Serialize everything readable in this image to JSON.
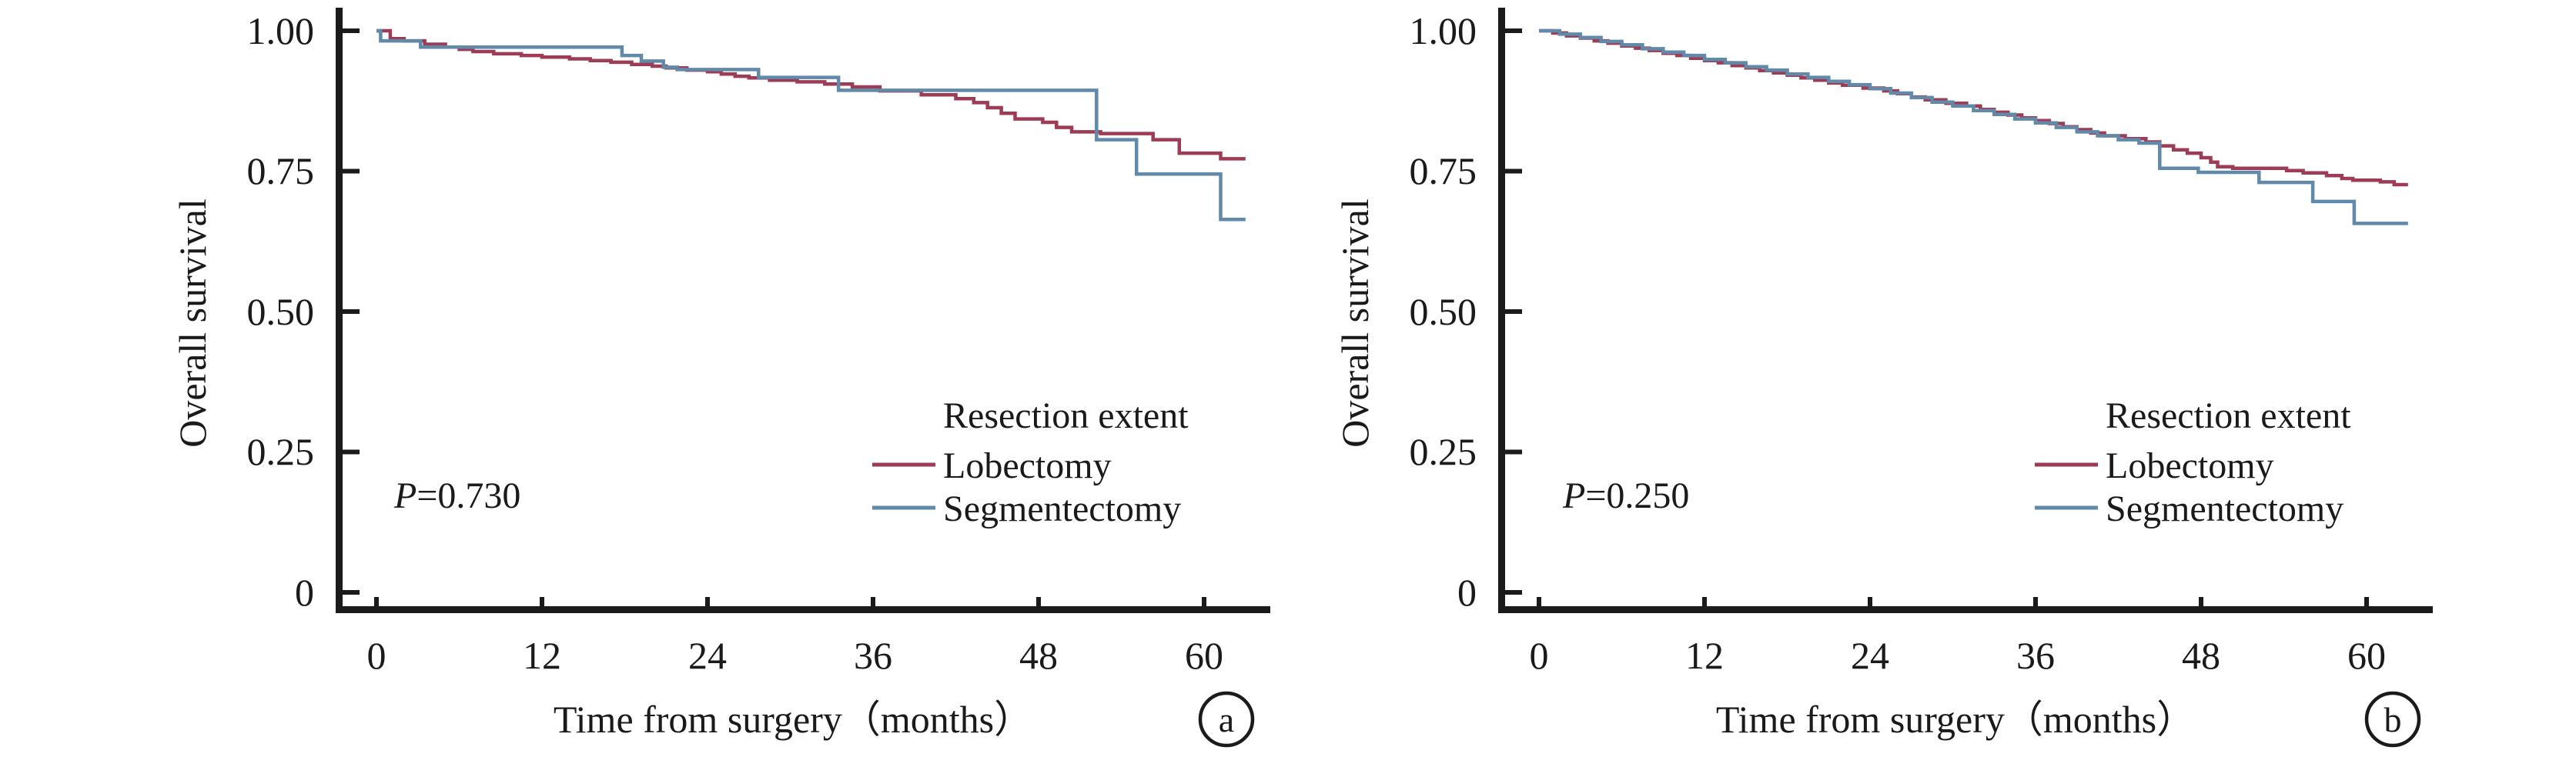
{
  "figure": {
    "background": "#ffffff",
    "axis_color": "#1b1b1b",
    "text_color": "#1a1a1a"
  },
  "chart_data": [
    {
      "type": "line",
      "subtype": "kaplan_meier_step",
      "panel_label": "a",
      "title": "",
      "xlabel": "Time from surgery（months）",
      "ylabel": "Overall survival",
      "xticks": [
        0,
        12,
        24,
        36,
        48,
        60
      ],
      "yticks": [
        "1.00",
        "0.75",
        "0.50",
        "0.25",
        "0"
      ],
      "ytick_values": [
        1.0,
        0.75,
        0.5,
        0.25,
        0
      ],
      "xlim": [
        0,
        64
      ],
      "ylim": [
        0,
        1.0
      ],
      "grid": false,
      "p_label": "P",
      "p_value": "=0.730",
      "legend_title": "Resection extent",
      "legend_position": "inside lower right",
      "series": [
        {
          "name": "Lobectomy",
          "color": "#9e3c55",
          "points": [
            [
              0,
              1.0
            ],
            [
              1,
              0.986
            ],
            [
              2,
              0.982
            ],
            [
              3.5,
              0.976
            ],
            [
              5,
              0.971
            ],
            [
              6,
              0.967
            ],
            [
              7,
              0.963
            ],
            [
              8.5,
              0.959
            ],
            [
              10.5,
              0.956
            ],
            [
              12,
              0.953
            ],
            [
              14,
              0.95
            ],
            [
              15.5,
              0.947
            ],
            [
              17,
              0.944
            ],
            [
              18.5,
              0.94
            ],
            [
              20,
              0.937
            ],
            [
              21,
              0.934
            ],
            [
              22.5,
              0.93
            ],
            [
              24,
              0.927
            ],
            [
              25,
              0.923
            ],
            [
              26,
              0.919
            ],
            [
              27,
              0.916
            ],
            [
              28.5,
              0.912
            ],
            [
              30.5,
              0.909
            ],
            [
              32.5,
              0.905
            ],
            [
              34.5,
              0.9
            ],
            [
              36.5,
              0.893
            ],
            [
              39.5,
              0.886
            ],
            [
              42,
              0.879
            ],
            [
              43.3,
              0.872
            ],
            [
              44.3,
              0.863
            ],
            [
              45.3,
              0.853
            ],
            [
              46.3,
              0.843
            ],
            [
              48.3,
              0.837
            ],
            [
              49.3,
              0.828
            ],
            [
              50.4,
              0.82
            ],
            [
              52.5,
              0.817
            ],
            [
              56.3,
              0.806
            ],
            [
              58.2,
              0.782
            ],
            [
              61.2,
              0.772
            ],
            [
              63,
              0.772
            ]
          ]
        },
        {
          "name": "Segmentectomy",
          "color": "#6189a9",
          "points": [
            [
              0,
              1.0
            ],
            [
              0.3,
              0.982
            ],
            [
              3.2,
              0.971
            ],
            [
              17.8,
              0.956
            ],
            [
              19.2,
              0.946
            ],
            [
              20.8,
              0.935
            ],
            [
              21.8,
              0.931
            ],
            [
              27.7,
              0.917
            ],
            [
              33.5,
              0.894
            ],
            [
              52.2,
              0.806
            ],
            [
              55.1,
              0.745
            ],
            [
              61.2,
              0.664
            ],
            [
              63,
              0.664
            ]
          ]
        }
      ]
    },
    {
      "type": "line",
      "subtype": "kaplan_meier_step",
      "panel_label": "b",
      "title": "",
      "xlabel": "Time from surgery（months）",
      "ylabel": "Overall survival",
      "xticks": [
        0,
        12,
        24,
        36,
        48,
        60
      ],
      "yticks": [
        "1.00",
        "0.75",
        "0.50",
        "0.25",
        "0"
      ],
      "ytick_values": [
        1.0,
        0.75,
        0.5,
        0.25,
        0
      ],
      "xlim": [
        0,
        64
      ],
      "ylim": [
        0,
        1.0
      ],
      "grid": false,
      "p_label": "P",
      "p_value": "=0.250",
      "legend_title": "Resection extent",
      "legend_position": "inside lower right",
      "series": [
        {
          "name": "Lobectomy",
          "color": "#9e3c55",
          "points": [
            [
              0,
              1.0
            ],
            [
              1,
              0.996
            ],
            [
              2,
              0.991
            ],
            [
              3,
              0.987
            ],
            [
              4,
              0.982
            ],
            [
              5,
              0.978
            ],
            [
              6,
              0.973
            ],
            [
              7,
              0.969
            ],
            [
              8,
              0.965
            ],
            [
              9,
              0.96
            ],
            [
              10,
              0.956
            ],
            [
              11,
              0.951
            ],
            [
              12,
              0.947
            ],
            [
              13,
              0.943
            ],
            [
              14,
              0.938
            ],
            [
              15,
              0.934
            ],
            [
              16,
              0.929
            ],
            [
              17,
              0.925
            ],
            [
              18,
              0.921
            ],
            [
              19,
              0.916
            ],
            [
              20,
              0.912
            ],
            [
              21,
              0.907
            ],
            [
              22,
              0.903
            ],
            [
              23.5,
              0.898
            ],
            [
              25,
              0.893
            ],
            [
              26,
              0.888
            ],
            [
              27,
              0.882
            ],
            [
              28,
              0.877
            ],
            [
              29.5,
              0.871
            ],
            [
              31,
              0.866
            ],
            [
              32,
              0.86
            ],
            [
              33,
              0.855
            ],
            [
              34,
              0.85
            ],
            [
              35,
              0.845
            ],
            [
              36,
              0.84
            ],
            [
              37,
              0.835
            ],
            [
              38,
              0.829
            ],
            [
              39,
              0.824
            ],
            [
              40,
              0.818
            ],
            [
              41,
              0.813
            ],
            [
              42.5,
              0.808
            ],
            [
              44,
              0.802
            ],
            [
              45,
              0.795
            ],
            [
              46,
              0.788
            ],
            [
              47,
              0.782
            ],
            [
              48,
              0.774
            ],
            [
              48.7,
              0.766
            ],
            [
              49.2,
              0.758
            ],
            [
              50.3,
              0.755
            ],
            [
              54.2,
              0.751
            ],
            [
              55.4,
              0.747
            ],
            [
              57.1,
              0.742
            ],
            [
              58.2,
              0.737
            ],
            [
              59,
              0.734
            ],
            [
              61,
              0.731
            ],
            [
              62,
              0.726
            ],
            [
              63,
              0.726
            ]
          ]
        },
        {
          "name": "Segmentectomy",
          "color": "#6189a9",
          "points": [
            [
              0,
              1.0
            ],
            [
              1.5,
              0.994
            ],
            [
              3,
              0.988
            ],
            [
              4.5,
              0.981
            ],
            [
              6,
              0.975
            ],
            [
              7.5,
              0.968
            ],
            [
              9,
              0.962
            ],
            [
              10.5,
              0.956
            ],
            [
              12,
              0.949
            ],
            [
              13.5,
              0.943
            ],
            [
              15,
              0.936
            ],
            [
              16.5,
              0.93
            ],
            [
              18,
              0.923
            ],
            [
              19.5,
              0.917
            ],
            [
              21,
              0.91
            ],
            [
              22.5,
              0.904
            ],
            [
              24,
              0.897
            ],
            [
              25.5,
              0.889
            ],
            [
              27,
              0.881
            ],
            [
              28.5,
              0.873
            ],
            [
              30,
              0.866
            ],
            [
              31.5,
              0.858
            ],
            [
              33,
              0.851
            ],
            [
              34.5,
              0.843
            ],
            [
              36,
              0.836
            ],
            [
              37.5,
              0.828
            ],
            [
              39,
              0.82
            ],
            [
              40.5,
              0.813
            ],
            [
              42,
              0.806
            ],
            [
              43.5,
              0.8
            ],
            [
              45,
              0.755
            ],
            [
              47.8,
              0.748
            ],
            [
              52.2,
              0.73
            ],
            [
              56.1,
              0.696
            ],
            [
              59.1,
              0.657
            ],
            [
              63,
              0.657
            ]
          ]
        }
      ]
    }
  ]
}
